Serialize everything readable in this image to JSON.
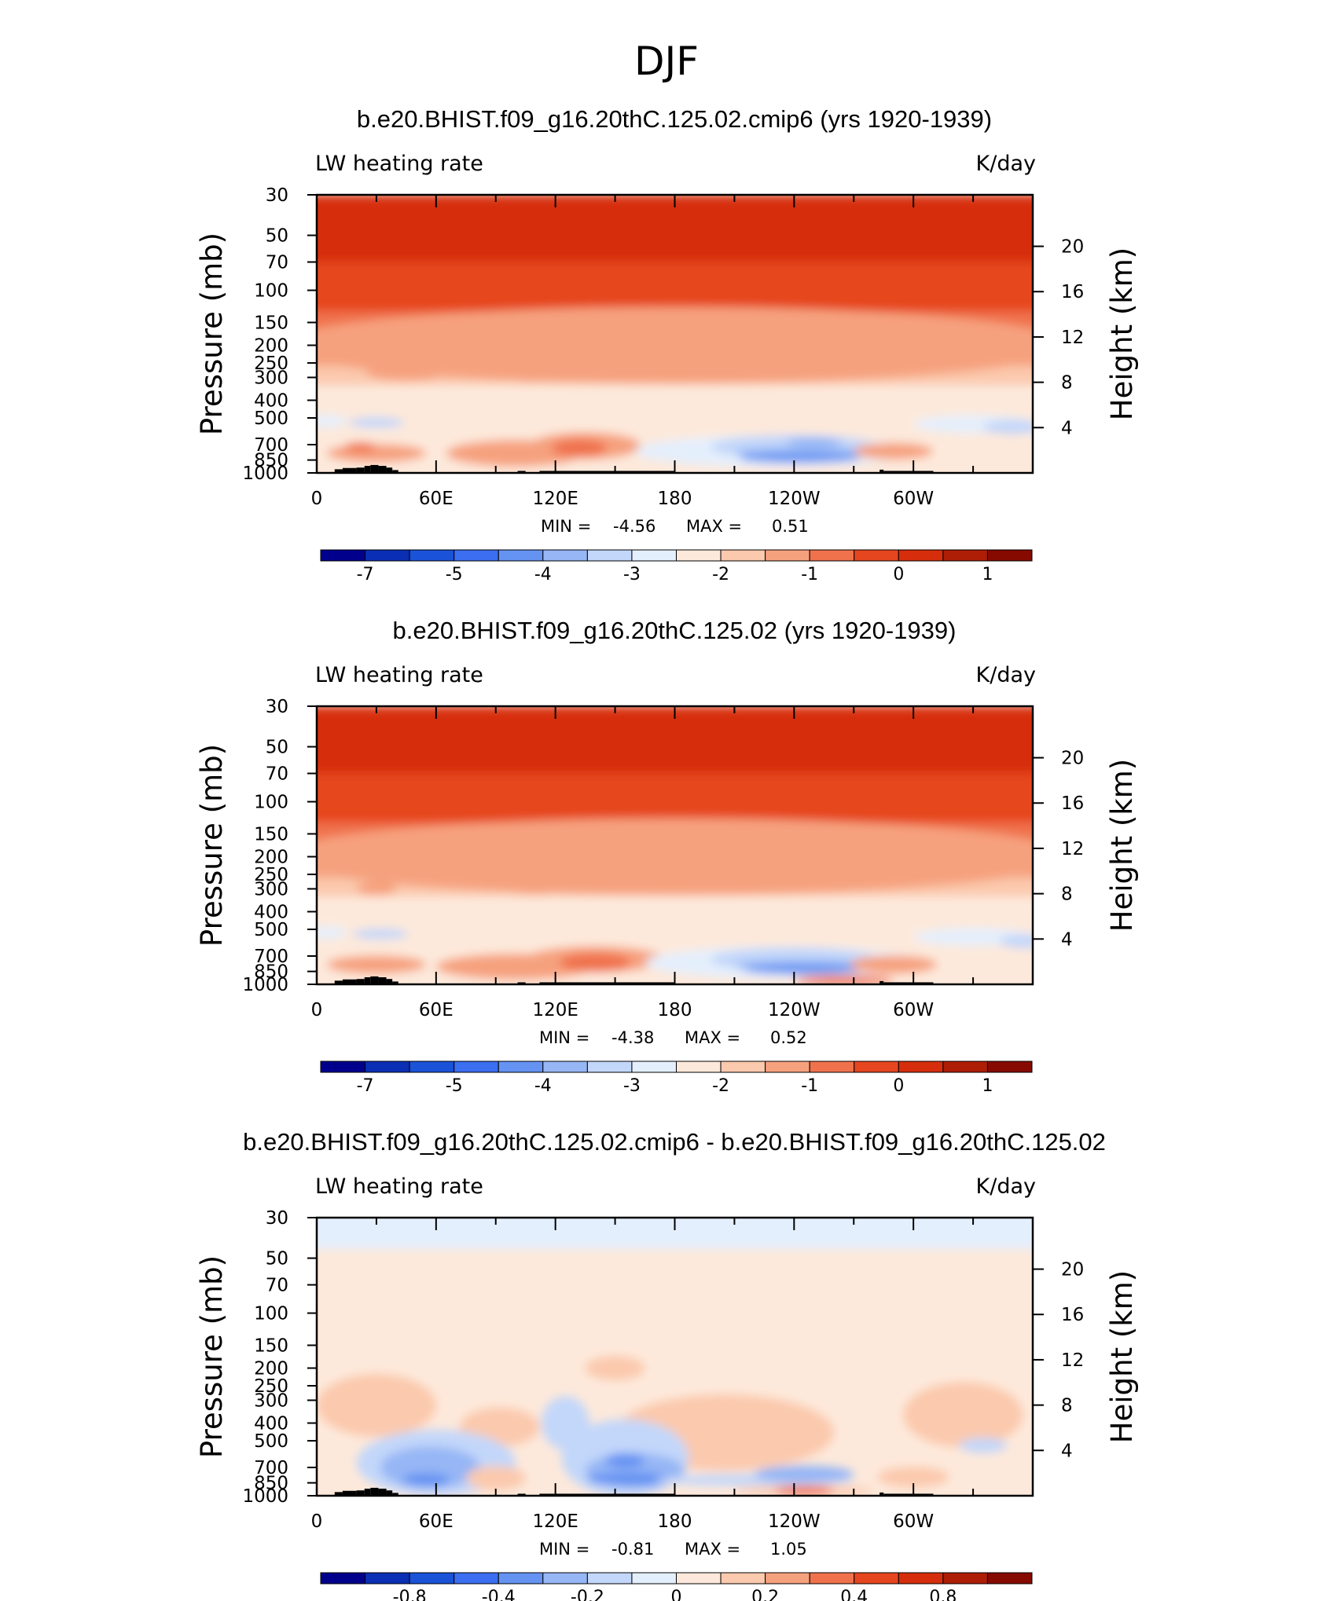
{
  "figure_title": "DJF",
  "colors": {
    "blue_red_14": [
      "#00008c",
      "#0a2fb4",
      "#1a52d8",
      "#3b6ef0",
      "#6593f2",
      "#96b6f5",
      "#c3d7fa",
      "#e4effd",
      "#fde9db",
      "#fbc9ad",
      "#f6a17e",
      "#f0724d",
      "#e6461f",
      "#d62e0c",
      "#ae1d06",
      "#870a00"
    ],
    "terrain": "#000000"
  },
  "chart_data": [
    {
      "type": "heatmap",
      "title": "b.e20.BHIST.f09_g16.20thC.125.02.cmip6 (yrs 1920-1939)",
      "left_label": "LW heating rate",
      "right_label": "K/day",
      "ylabel": "Pressure (mb)",
      "ylabel_right": "Height (km)",
      "x_ticks": [
        "0",
        "60E",
        "120E",
        "180",
        "120W",
        "60W"
      ],
      "x_tick_values": [
        0,
        60,
        120,
        180,
        240,
        300
      ],
      "xlim": [
        0,
        360
      ],
      "pressure_ticks": [
        "30",
        "50",
        "70",
        "100",
        "150",
        "200",
        "250",
        "300",
        "400",
        "500",
        "700",
        "850",
        "1000"
      ],
      "pressure_values": [
        30,
        50,
        70,
        100,
        150,
        200,
        250,
        300,
        400,
        500,
        700,
        850,
        1000
      ],
      "height_ticks": [
        "20",
        "16",
        "12",
        "8",
        "4"
      ],
      "height_values": [
        20,
        16,
        12,
        8,
        4
      ],
      "min_label": "MIN =",
      "min_value": "-4.56",
      "max_label": "MAX =",
      "max_value": "0.51",
      "colorbar_labels": [
        "-7",
        "-5",
        "-4",
        "-3",
        "-2",
        "-1",
        "0",
        "1"
      ],
      "blobs": [
        {
          "lon": 180,
          "p": 200,
          "rx": 200,
          "rp": 90,
          "color": 10
        },
        {
          "lon": 45,
          "p": 280,
          "rx": 20,
          "rp": 30,
          "color": 10
        },
        {
          "lon": 107,
          "p": 300,
          "rx": 6,
          "rp": 15,
          "color": 10
        },
        {
          "lon": 5,
          "p": 520,
          "rx": 10,
          "rp": 40,
          "color": 7
        },
        {
          "lon": 30,
          "p": 530,
          "rx": 14,
          "rp": 35,
          "color": 6
        },
        {
          "lon": 30,
          "p": 780,
          "rx": 25,
          "rp": 90,
          "color": 10
        },
        {
          "lon": 22,
          "p": 720,
          "rx": 8,
          "rp": 20,
          "color": 11
        },
        {
          "lon": 100,
          "p": 780,
          "rx": 35,
          "rp": 130,
          "color": 10
        },
        {
          "lon": 135,
          "p": 710,
          "rx": 28,
          "rp": 120,
          "color": 10
        },
        {
          "lon": 132,
          "p": 730,
          "rx": 14,
          "rp": 80,
          "color": 11
        },
        {
          "lon": 230,
          "p": 760,
          "rx": 70,
          "rp": 150,
          "color": 7
        },
        {
          "lon": 240,
          "p": 720,
          "rx": 42,
          "rp": 110,
          "color": 6
        },
        {
          "lon": 245,
          "p": 780,
          "rx": 35,
          "rp": 60,
          "color": 5
        },
        {
          "lon": 243,
          "p": 830,
          "rx": 30,
          "rp": 40,
          "color": 4
        },
        {
          "lon": 250,
          "p": 680,
          "rx": 14,
          "rp": 35,
          "color": 5
        },
        {
          "lon": 290,
          "p": 760,
          "rx": 20,
          "rp": 80,
          "color": 10
        },
        {
          "lon": 330,
          "p": 540,
          "rx": 30,
          "rp": 60,
          "color": 7
        },
        {
          "lon": 350,
          "p": 560,
          "rx": 15,
          "rp": 50,
          "color": 6
        }
      ]
    },
    {
      "type": "heatmap",
      "title": "b.e20.BHIST.f09_g16.20thC.125.02 (yrs 1920-1939)",
      "left_label": "LW heating rate",
      "right_label": "K/day",
      "ylabel": "Pressure (mb)",
      "ylabel_right": "Height (km)",
      "x_ticks": [
        "0",
        "60E",
        "120E",
        "180",
        "120W",
        "60W"
      ],
      "x_tick_values": [
        0,
        60,
        120,
        180,
        240,
        300
      ],
      "xlim": [
        0,
        360
      ],
      "pressure_ticks": [
        "30",
        "50",
        "70",
        "100",
        "150",
        "200",
        "250",
        "300",
        "400",
        "500",
        "700",
        "850",
        "1000"
      ],
      "pressure_values": [
        30,
        50,
        70,
        100,
        150,
        200,
        250,
        300,
        400,
        500,
        700,
        850,
        1000
      ],
      "height_ticks": [
        "20",
        "16",
        "12",
        "8",
        "4"
      ],
      "height_values": [
        20,
        16,
        12,
        8,
        4
      ],
      "min_label": "MIN =",
      "min_value": "-4.38",
      "max_label": "MAX =",
      "max_value": "0.52",
      "colorbar_labels": [
        "-7",
        "-5",
        "-4",
        "-3",
        "-2",
        "-1",
        "0",
        "1"
      ],
      "blobs": [
        {
          "lon": 180,
          "p": 200,
          "rx": 200,
          "rp": 90,
          "color": 10
        },
        {
          "lon": 30,
          "p": 300,
          "rx": 10,
          "rp": 25,
          "color": 10
        },
        {
          "lon": 110,
          "p": 290,
          "rx": 15,
          "rp": 30,
          "color": 10
        },
        {
          "lon": 5,
          "p": 520,
          "rx": 10,
          "rp": 40,
          "color": 7
        },
        {
          "lon": 32,
          "p": 530,
          "rx": 14,
          "rp": 35,
          "color": 6
        },
        {
          "lon": 30,
          "p": 780,
          "rx": 25,
          "rp": 90,
          "color": 10
        },
        {
          "lon": 100,
          "p": 800,
          "rx": 40,
          "rp": 130,
          "color": 10
        },
        {
          "lon": 140,
          "p": 730,
          "rx": 35,
          "rp": 120,
          "color": 10
        },
        {
          "lon": 140,
          "p": 760,
          "rx": 18,
          "rp": 90,
          "color": 11
        },
        {
          "lon": 235,
          "p": 760,
          "rx": 70,
          "rp": 150,
          "color": 7
        },
        {
          "lon": 240,
          "p": 730,
          "rx": 42,
          "rp": 110,
          "color": 6
        },
        {
          "lon": 245,
          "p": 790,
          "rx": 35,
          "rp": 60,
          "color": 5
        },
        {
          "lon": 245,
          "p": 830,
          "rx": 30,
          "rp": 40,
          "color": 4
        },
        {
          "lon": 265,
          "p": 950,
          "rx": 25,
          "rp": 40,
          "color": 11
        },
        {
          "lon": 290,
          "p": 780,
          "rx": 22,
          "rp": 90,
          "color": 10
        },
        {
          "lon": 330,
          "p": 550,
          "rx": 30,
          "rp": 60,
          "color": 7
        },
        {
          "lon": 355,
          "p": 580,
          "rx": 12,
          "rp": 50,
          "color": 6
        }
      ]
    },
    {
      "type": "heatmap",
      "title": "b.e20.BHIST.f09_g16.20thC.125.02.cmip6 - b.e20.BHIST.f09_g16.20thC.125.02",
      "left_label": "LW heating rate",
      "right_label": "K/day",
      "ylabel": "Pressure (mb)",
      "ylabel_right": "Height (km)",
      "x_ticks": [
        "0",
        "60E",
        "120E",
        "180",
        "120W",
        "60W"
      ],
      "x_tick_values": [
        0,
        60,
        120,
        180,
        240,
        300
      ],
      "xlim": [
        0,
        360
      ],
      "pressure_ticks": [
        "30",
        "50",
        "70",
        "100",
        "150",
        "200",
        "250",
        "300",
        "400",
        "500",
        "700",
        "850",
        "1000"
      ],
      "pressure_values": [
        30,
        50,
        70,
        100,
        150,
        200,
        250,
        300,
        400,
        500,
        700,
        850,
        1000
      ],
      "height_ticks": [
        "20",
        "16",
        "12",
        "8",
        "4"
      ],
      "height_values": [
        20,
        16,
        12,
        8,
        4
      ],
      "min_label": "MIN =",
      "min_value": "-0.81",
      "max_label": "MAX =",
      "max_value": "1.05",
      "colorbar_labels": [
        "-0.8",
        "-0.4",
        "-0.2",
        "0",
        "0.2",
        "0.4",
        "0.8"
      ],
      "blobs": [
        {
          "lon": 30,
          "p": 320,
          "rx": 30,
          "rp": 120,
          "color": 9
        },
        {
          "lon": 92,
          "p": 420,
          "rx": 20,
          "rp": 100,
          "color": 9
        },
        {
          "lon": 205,
          "p": 450,
          "rx": 55,
          "rp": 200,
          "color": 9
        },
        {
          "lon": 150,
          "p": 200,
          "rx": 15,
          "rp": 30,
          "color": 9
        },
        {
          "lon": 325,
          "p": 360,
          "rx": 30,
          "rp": 140,
          "color": 9
        },
        {
          "lon": 60,
          "p": 660,
          "rx": 40,
          "rp": 260,
          "color": 6
        },
        {
          "lon": 57,
          "p": 700,
          "rx": 25,
          "rp": 180,
          "color": 5
        },
        {
          "lon": 55,
          "p": 820,
          "rx": 12,
          "rp": 70,
          "color": 4
        },
        {
          "lon": 125,
          "p": 400,
          "rx": 12,
          "rp": 130,
          "color": 6
        },
        {
          "lon": 155,
          "p": 620,
          "rx": 32,
          "rp": 280,
          "color": 6
        },
        {
          "lon": 160,
          "p": 730,
          "rx": 25,
          "rp": 160,
          "color": 5
        },
        {
          "lon": 158,
          "p": 810,
          "rx": 22,
          "rp": 70,
          "color": 4
        },
        {
          "lon": 155,
          "p": 640,
          "rx": 10,
          "rp": 60,
          "color": 4
        },
        {
          "lon": 220,
          "p": 820,
          "rx": 50,
          "rp": 60,
          "color": 6
        },
        {
          "lon": 245,
          "p": 760,
          "rx": 25,
          "rp": 80,
          "color": 5
        },
        {
          "lon": 245,
          "p": 935,
          "rx": 35,
          "rp": 50,
          "color": 9
        },
        {
          "lon": 245,
          "p": 935,
          "rx": 15,
          "rp": 30,
          "color": 11
        },
        {
          "lon": 335,
          "p": 530,
          "rx": 12,
          "rp": 50,
          "color": 6
        },
        {
          "lon": 90,
          "p": 800,
          "rx": 15,
          "rp": 120,
          "color": 9
        },
        {
          "lon": 300,
          "p": 790,
          "rx": 18,
          "rp": 100,
          "color": 9
        }
      ]
    }
  ]
}
